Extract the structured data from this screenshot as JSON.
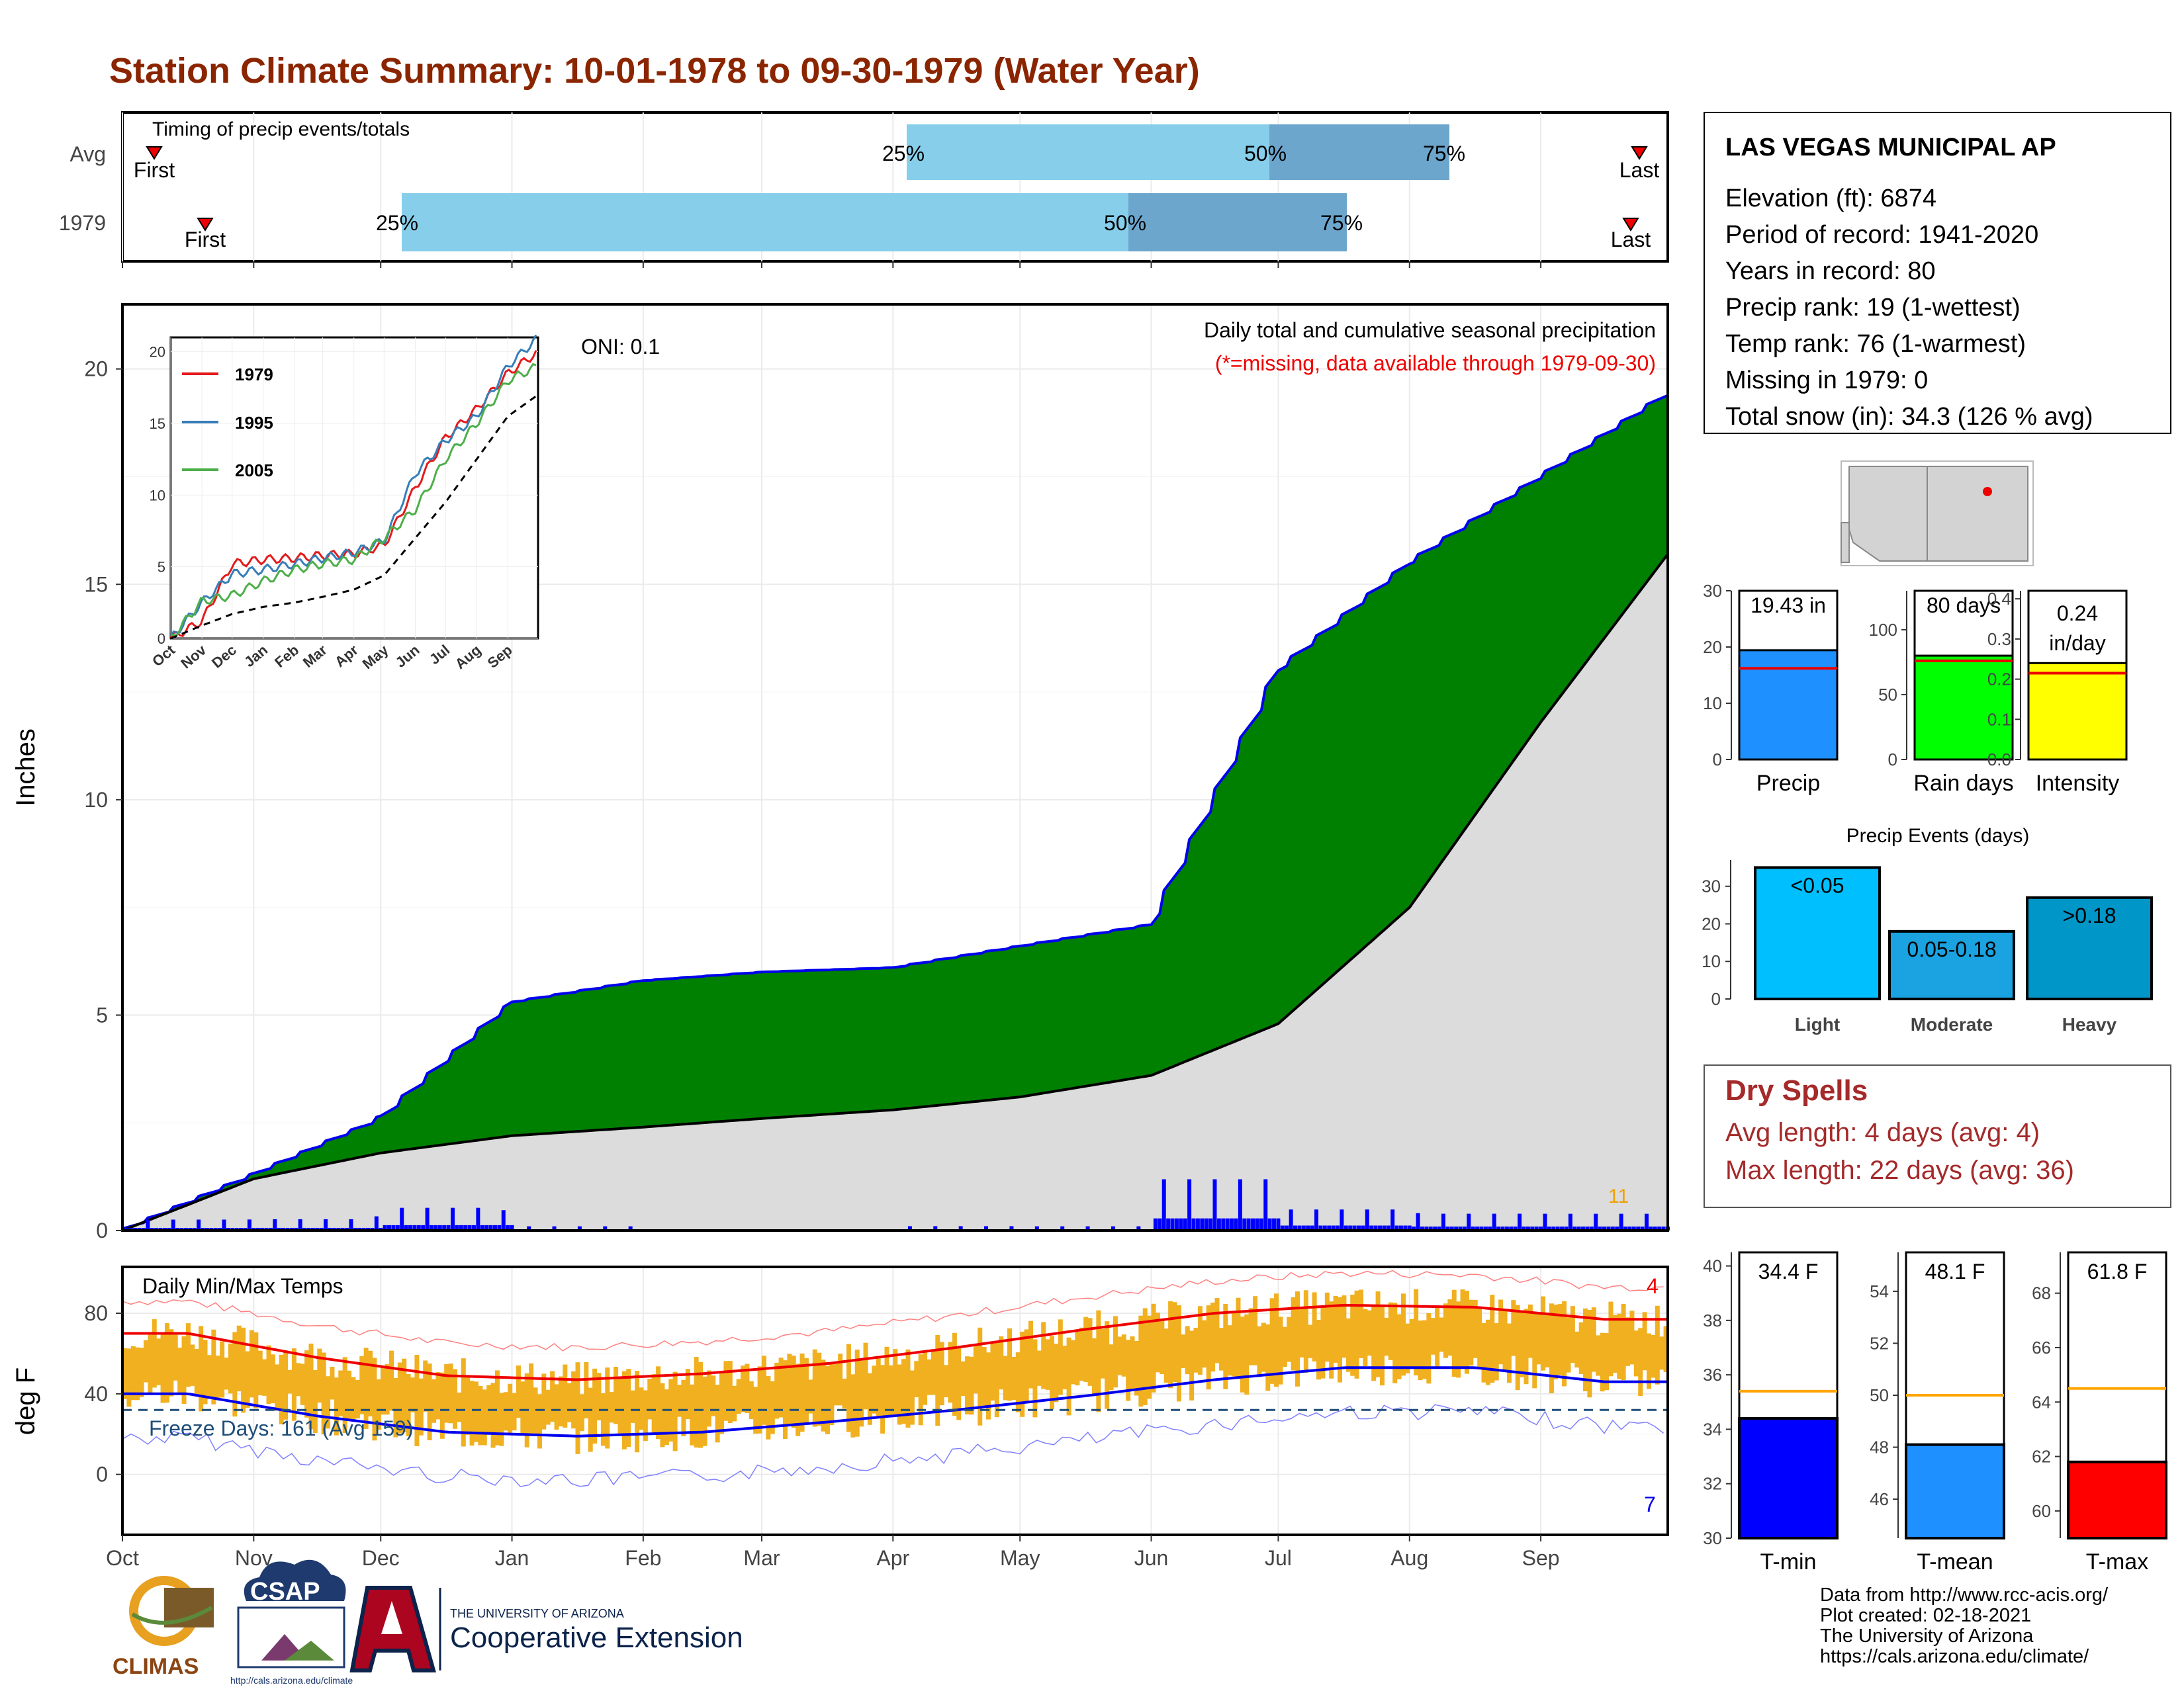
{
  "header": {
    "title": "Station Climate Summary: 10-01-1978 to 09-30-1979 (Water Year)"
  },
  "station": {
    "name": "LAS VEGAS MUNICIPAL AP",
    "lines": [
      "Elevation (ft): 6874",
      "Period of record: 1941-2020",
      "Years in record: 80",
      "Precip rank: 19 (1-wettest)",
      "Temp rank: 76 (1-warmest)",
      "Missing in 1979: 0",
      "Total snow (in): 34.3 (126 % avg)"
    ]
  },
  "timing": {
    "title": "Timing of precip events/totals",
    "rows": [
      "Avg",
      "1979"
    ],
    "first_label": "First",
    "last_label": "Last",
    "q25": "25%",
    "q50": "50%",
    "q75": "75%"
  },
  "precip": {
    "title": "Daily total and cumulative seasonal precipitation",
    "missing_note": "(*=missing, data available through 1979-09-30)",
    "oni": "ONI: 0.1",
    "ylabel": "Inches",
    "count_label": "11"
  },
  "temps": {
    "title": "Daily Min/Max Temps",
    "ylabel": "deg F",
    "freeze": "Freeze Days: 161 (Avg 159)",
    "high_count": "4",
    "low_count": "7"
  },
  "months": [
    "Oct",
    "Nov",
    "Dec",
    "Jan",
    "Feb",
    "Mar",
    "Apr",
    "May",
    "Jun",
    "Jul",
    "Aug",
    "Sep"
  ],
  "summary_bars": [
    {
      "label": "Precip",
      "value_text": "19.43 in",
      "value": 19.43,
      "avg": 16.2,
      "ticks": [
        "0",
        "10",
        "20",
        "30"
      ],
      "max": 30,
      "color": "#1e90ff"
    },
    {
      "label": "Rain days",
      "value_text": "80 days",
      "value": 80,
      "avg": 76,
      "ticks": [
        "0",
        "50",
        "100"
      ],
      "max": 130,
      "color": "#00ff00"
    },
    {
      "label": "Intensity",
      "value_text": "0.24",
      "value_text2": "in/day",
      "value": 0.24,
      "avg": 0.215,
      "ticks": [
        "0.0",
        "0.1",
        "0.2",
        "0.3",
        "0.4"
      ],
      "max": 0.42,
      "color": "#ffff00"
    }
  ],
  "precip_events": {
    "title": "Precip Events (days)",
    "ticks": [
      "0",
      "10",
      "20",
      "30"
    ],
    "bars": [
      {
        "category": "Light",
        "label": "<0.05",
        "value": 35,
        "color": "#00bfff"
      },
      {
        "category": "Moderate",
        "label": "0.05-0.18",
        "value": 18,
        "color": "#1aa3e0"
      },
      {
        "category": "Heavy",
        "label": ">0.18",
        "value": 27,
        "color": "#0096c8"
      }
    ]
  },
  "dry_spells": {
    "title": "Dry Spells",
    "avg_length": "Avg length: 4 days (avg: 4)",
    "max_length": "Max length: 22 days (avg: 36)"
  },
  "temp_bars": [
    {
      "label": "T-min",
      "value_text": "34.4 F",
      "value": 34.4,
      "avg": 35.4,
      "ticks": [
        "30",
        "32",
        "34",
        "36",
        "38",
        "40"
      ],
      "min": 30,
      "max": 40.5,
      "color": "#0000ff"
    },
    {
      "label": "T-mean",
      "value_text": "48.1 F",
      "value": 48.1,
      "avg": 50.0,
      "ticks": [
        "46",
        "48",
        "50",
        "52",
        "54"
      ],
      "min": 44.5,
      "max": 55.5,
      "color": "#1e90ff"
    },
    {
      "label": "T-max",
      "value_text": "61.8 F",
      "value": 61.8,
      "avg": 64.5,
      "ticks": [
        "60",
        "62",
        "64",
        "66",
        "68"
      ],
      "min": 59,
      "max": 69.5,
      "color": "#ff0000"
    }
  ],
  "inset": {
    "legend": [
      "1979",
      "1995",
      "2005"
    ],
    "months": [
      "Oct",
      "Nov",
      "Dec",
      "Jan",
      "Feb",
      "Mar",
      "Apr",
      "May",
      "Jun",
      "Jul",
      "Aug",
      "Sep"
    ],
    "ticks": [
      "0",
      "5",
      "10",
      "15",
      "20"
    ]
  },
  "footer": {
    "source_lines": [
      "Data from http://www.rcc-acis.org/",
      "Plot created: 02-18-2021",
      "The University of Arizona",
      "https://cals.arizona.edu/climate/"
    ],
    "climas": "CLIMAS",
    "csap": "CSAP",
    "csap_url": "http://cals.arizona.edu/climate",
    "ua_small": "THE UNIVERSITY OF ARIZONA",
    "ua_big": "Cooperative Extension"
  },
  "colors": {
    "title": "#8b2500",
    "green": "#008000",
    "gray": "#dcdcdc",
    "brown": "#7f4f0f",
    "blue_line": "#0000ff",
    "dry": "#a52a2a",
    "avg_line": "#ffa500",
    "orange": "#f0b020"
  },
  "chart_data": [
    {
      "type": "area",
      "title": "Daily total and cumulative seasonal precipitation",
      "ylabel": "Inches",
      "ylim": [
        0,
        21.5
      ],
      "x": [
        "Oct",
        "Nov",
        "Dec",
        "Jan",
        "Feb",
        "Mar",
        "Apr",
        "May",
        "Jun",
        "Jul",
        "Aug",
        "Sep"
      ],
      "series": [
        {
          "name": "1979",
          "cumulative_end_of_month": [
            1.3,
            2.6,
            5.3,
            5.8,
            6.0,
            6.1,
            6.6,
            7.1,
            13.0,
            15.5,
            17.5,
            19.43
          ]
        },
        {
          "name": "Avg",
          "cumulative_end_of_month": [
            1.2,
            1.8,
            2.2,
            2.4,
            2.6,
            2.8,
            3.1,
            3.6,
            4.8,
            7.5,
            11.8,
            15.7
          ]
        }
      ]
    },
    {
      "type": "line",
      "title": "Daily Min/Max Temps",
      "ylabel": "deg F",
      "ylim": [
        -30,
        103
      ],
      "x": [
        "Oct",
        "Nov",
        "Dec",
        "Jan",
        "Feb",
        "Mar",
        "Apr",
        "May",
        "Jun",
        "Jul",
        "Aug",
        "Sep"
      ],
      "series": [
        {
          "name": "avg max",
          "values": [
            70,
            58,
            49,
            47,
            50,
            55,
            63,
            72,
            80,
            84,
            83,
            77
          ]
        },
        {
          "name": "avg min",
          "values": [
            40,
            29,
            21,
            19,
            21,
            26,
            32,
            39,
            47,
            53,
            53,
            46
          ]
        }
      ]
    }
  ]
}
